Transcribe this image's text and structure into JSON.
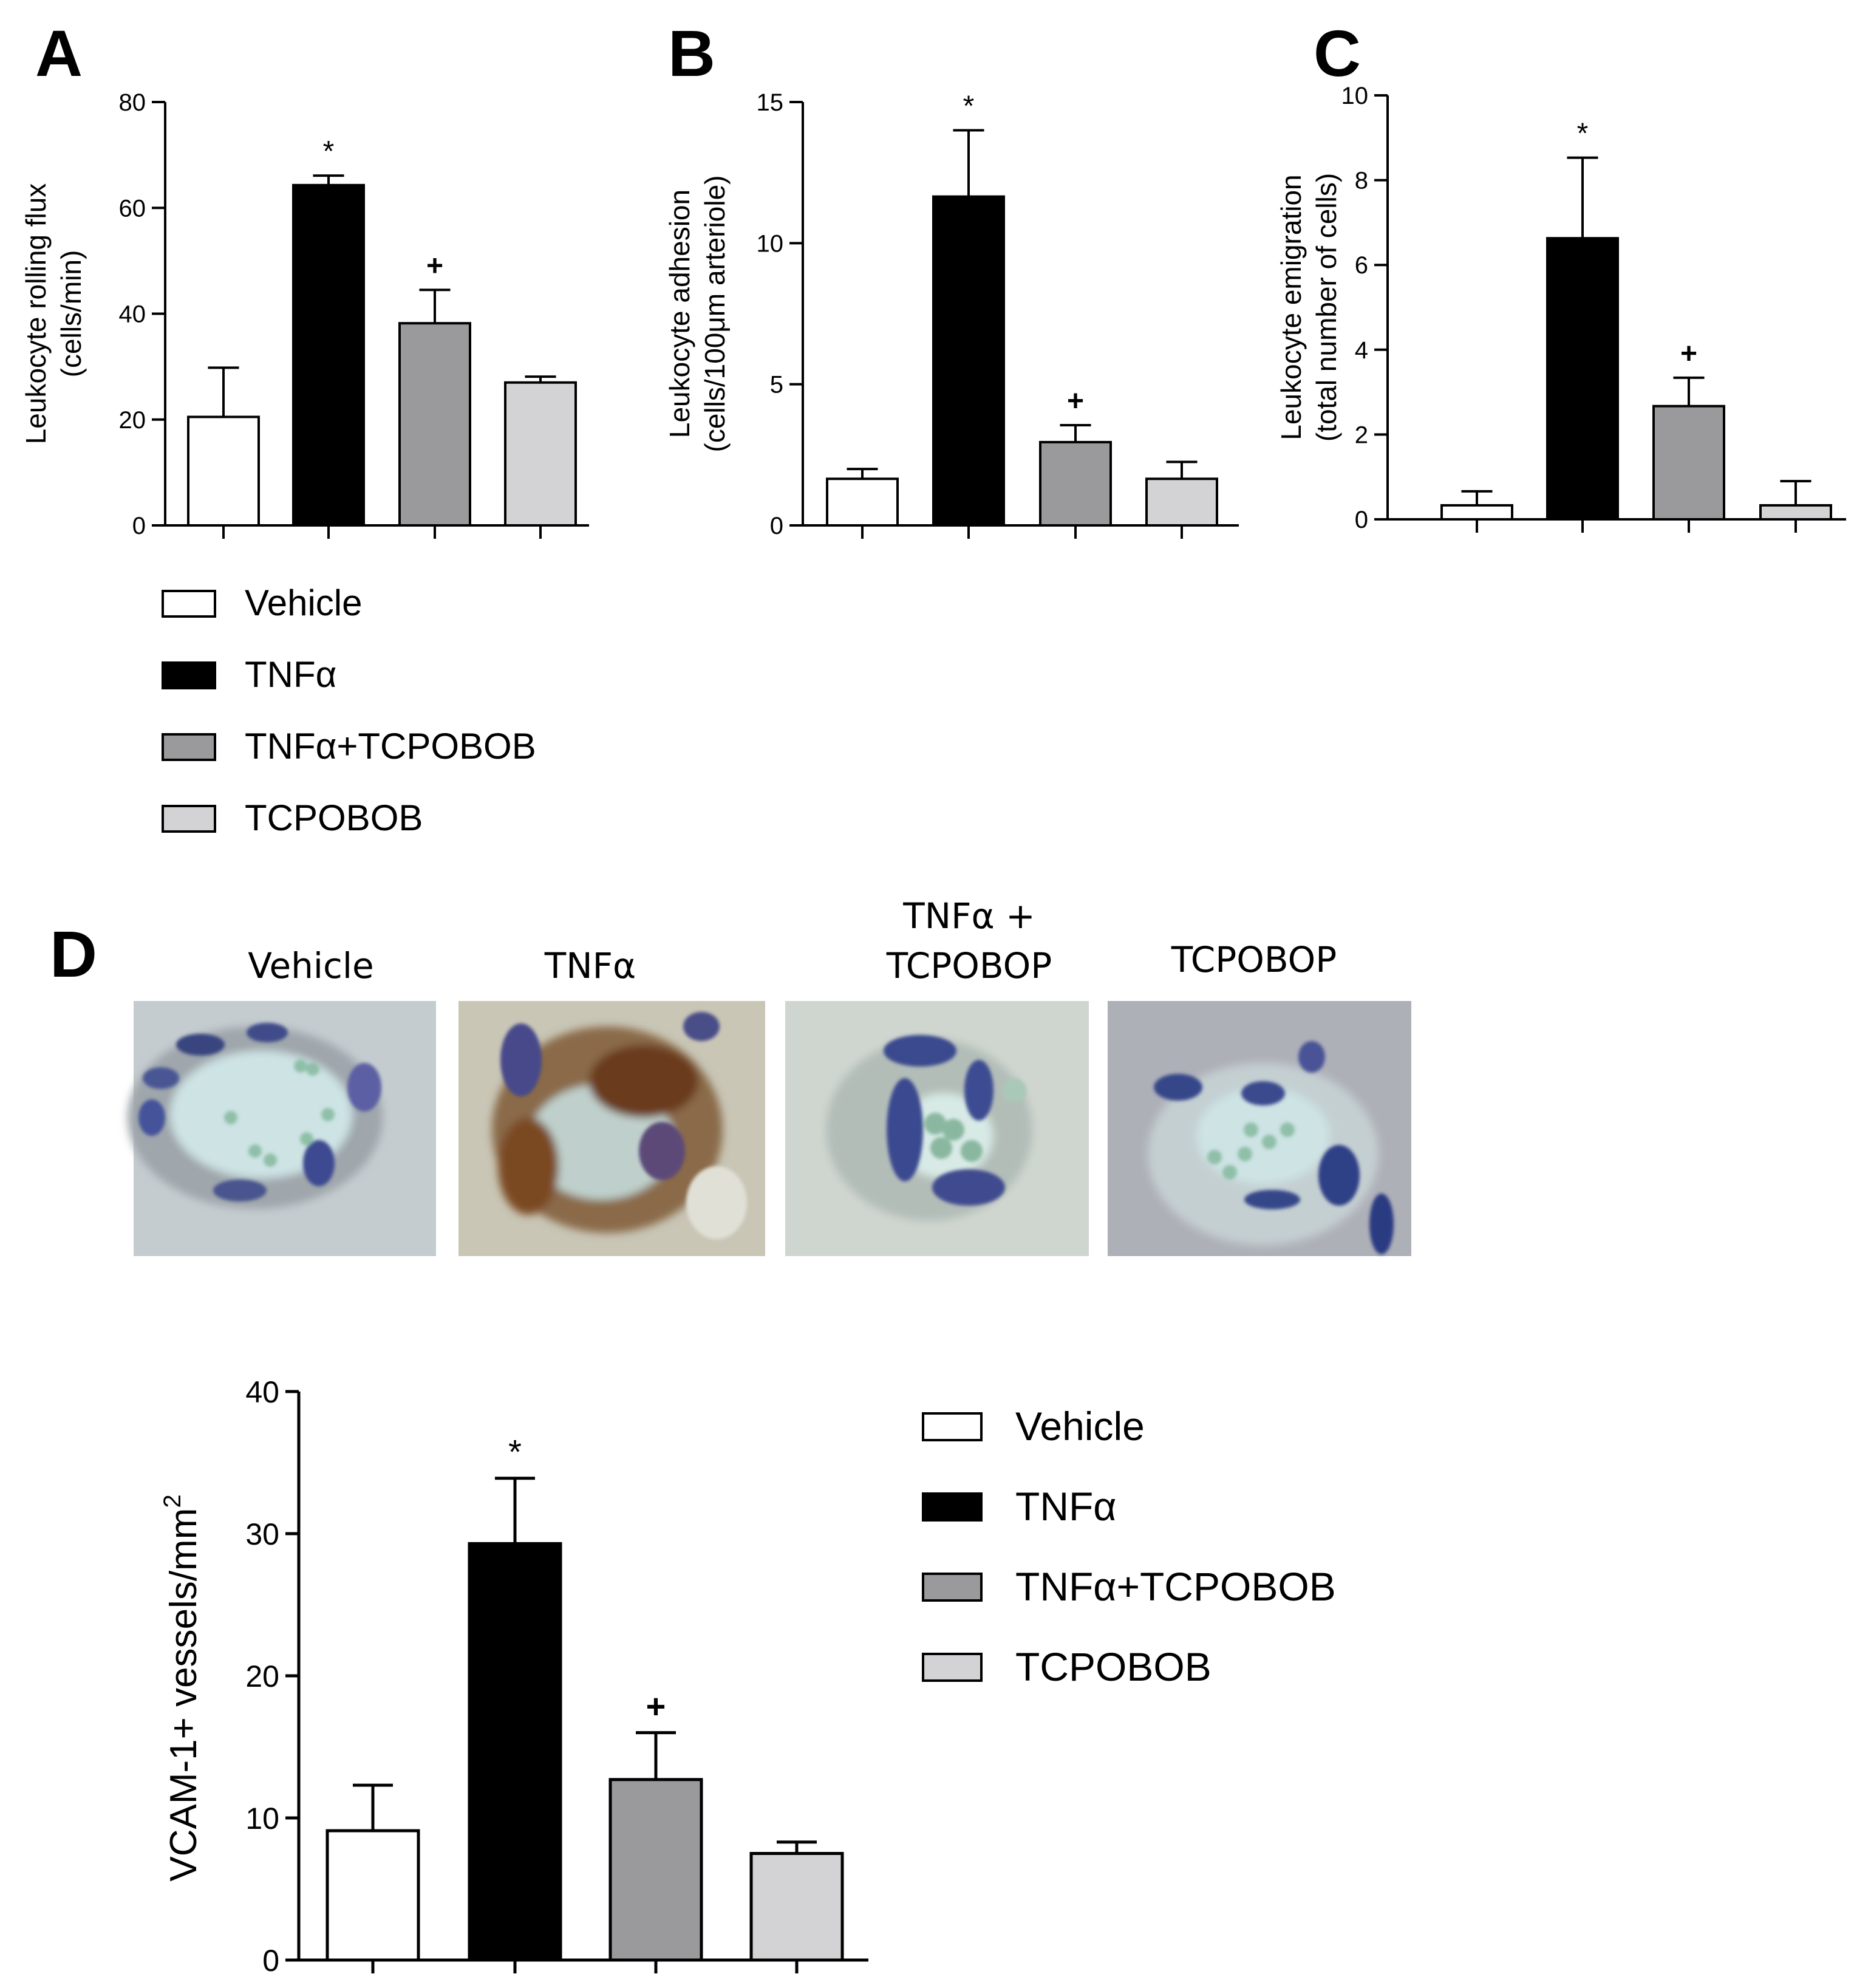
{
  "colors": {
    "Vehicle": "#ffffff",
    "TNFα": "#000000",
    "TNFα+TCPOBOB": "#9a9a9c",
    "TCPOBOB": "#d3d3d5"
  },
  "legend_top": [
    "Vehicle",
    "TNFα",
    "TNFα+TCPOBOB",
    "TCPOBOB"
  ],
  "legend_bottom": [
    "Vehicle",
    "TNFα",
    "TNFα+TCPOBOB",
    "TCPOBOB"
  ],
  "panel_d": {
    "letter": "D",
    "image_titles": [
      [
        "Vehicle"
      ],
      [
        "TNFα"
      ],
      [
        "TNFα +",
        "TCPOBOP"
      ],
      [
        "TCPOBOP"
      ]
    ]
  },
  "chart_data": [
    {
      "type": "bar",
      "panel": "A",
      "categories": [
        "Vehicle",
        "TNFα",
        "TNFα+TCPOBOB",
        "TCPOBOB"
      ],
      "values": [
        20.5,
        64.3,
        38.2,
        27.0
      ],
      "errors": [
        9.3,
        1.8,
        6.3,
        1.1
      ],
      "annotations": [
        "",
        "*",
        "+",
        ""
      ],
      "ylabel": [
        "Leukocyte rolling flux",
        "(cells/min)"
      ],
      "yticks": [
        0,
        20,
        40,
        60,
        80
      ],
      "ylim": [
        0,
        80
      ],
      "grid": false
    },
    {
      "type": "bar",
      "panel": "B",
      "categories": [
        "Vehicle",
        "TNFα",
        "TNFα+TCPOBOB",
        "TCPOBOB"
      ],
      "values": [
        1.65,
        11.65,
        2.95,
        1.65
      ],
      "errors": [
        0.35,
        2.35,
        0.6,
        0.6
      ],
      "annotations": [
        "",
        "*",
        "+",
        ""
      ],
      "ylabel": [
        "Leukocyte adhesion",
        "(cells/100μm arteriole)"
      ],
      "yticks": [
        0,
        5,
        10,
        15
      ],
      "ylim": [
        0,
        15
      ],
      "grid": false
    },
    {
      "type": "bar",
      "panel": "C",
      "categories": [
        "Vehicle",
        "TNFα",
        "TNFα+TCPOBOB",
        "TCPOBOB"
      ],
      "values": [
        0.33,
        6.63,
        2.67,
        0.33
      ],
      "errors": [
        0.33,
        1.9,
        0.67,
        0.57
      ],
      "annotations": [
        "",
        "*",
        "+",
        ""
      ],
      "ylabel": [
        "Leukocyte emigration",
        "(total number of cells)"
      ],
      "yticks": [
        0,
        2,
        4,
        6,
        8,
        10
      ],
      "ylim": [
        0,
        10
      ],
      "grid": false
    },
    {
      "type": "bar",
      "panel": "D",
      "categories": [
        "Vehicle",
        "TNFα",
        "TNFα+TCPOBOB",
        "TCPOBOB"
      ],
      "values": [
        9.1,
        29.3,
        12.7,
        7.5
      ],
      "errors": [
        3.2,
        4.6,
        3.3,
        0.8
      ],
      "annotations": [
        "",
        "*",
        "+",
        ""
      ],
      "ylabel": [
        "VCAM-1+ vessels/mm",
        "2"
      ],
      "yticks": [
        0,
        10,
        20,
        30,
        40
      ],
      "ylim": [
        0,
        40
      ],
      "grid": false
    }
  ]
}
